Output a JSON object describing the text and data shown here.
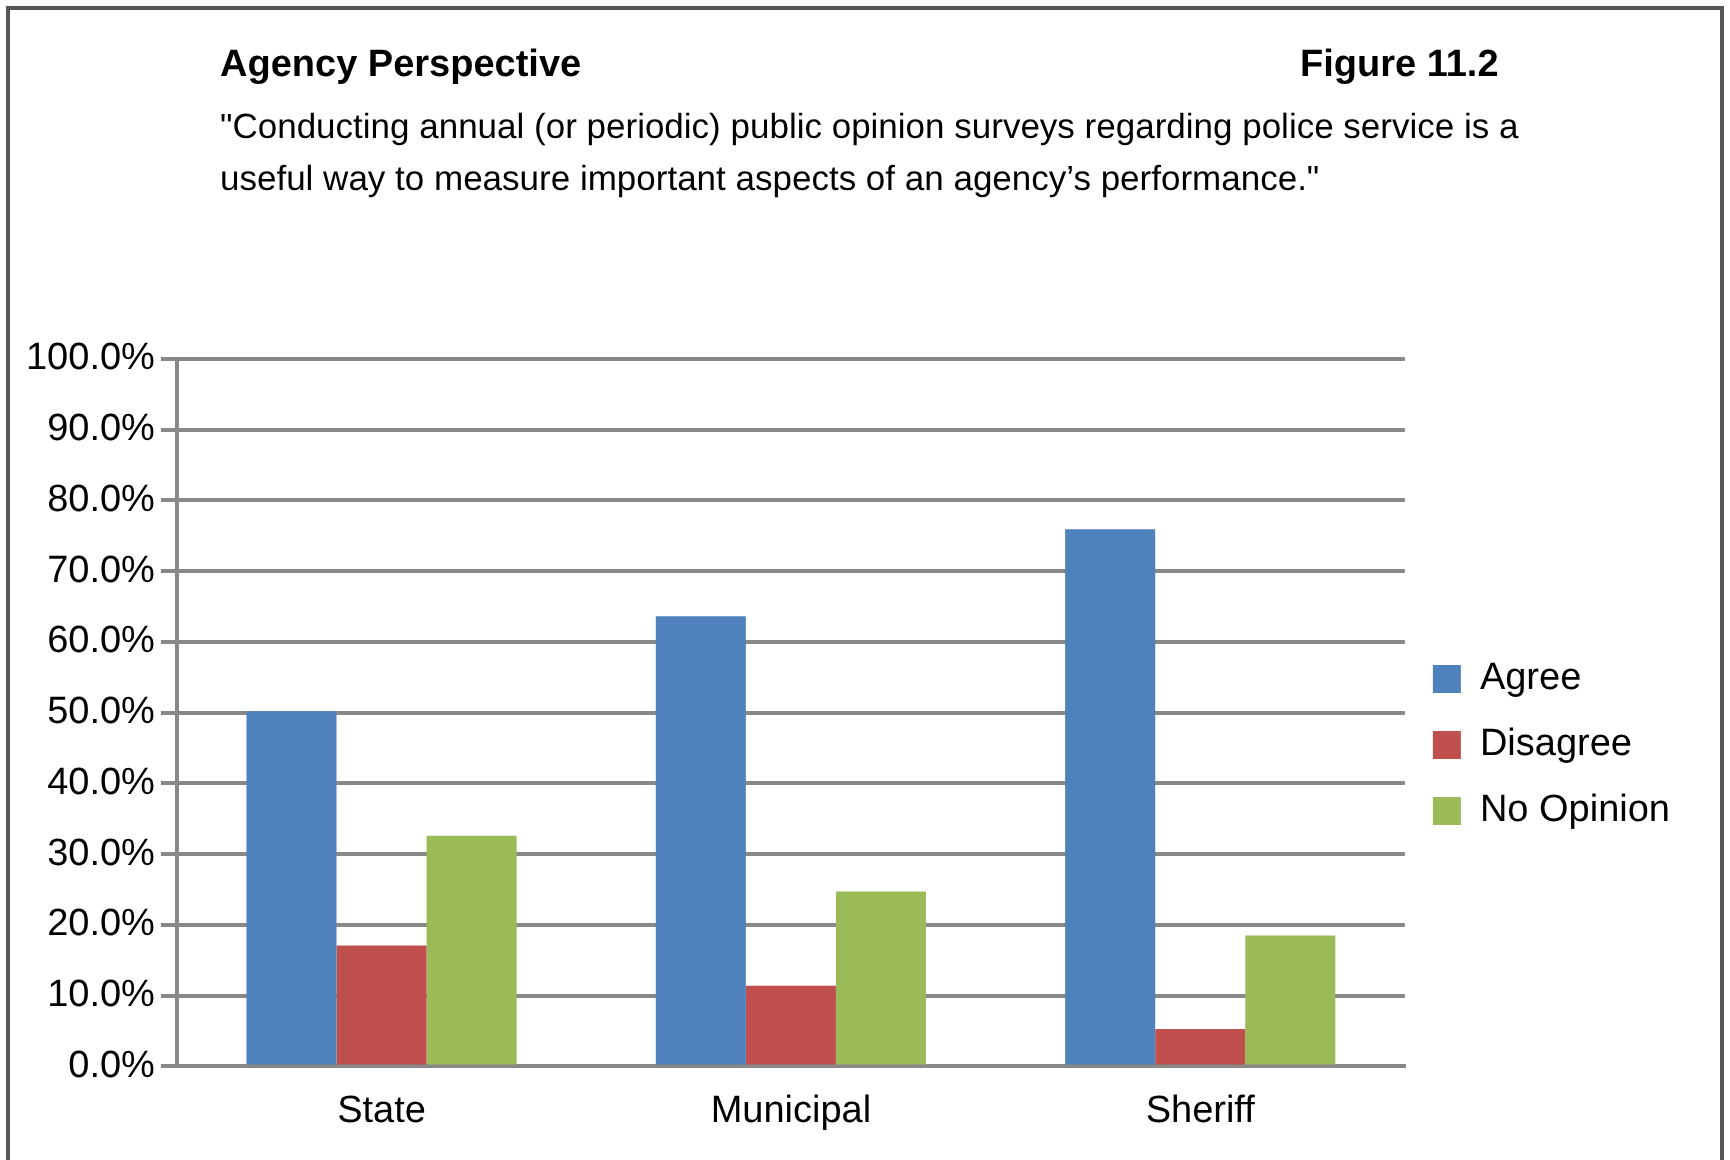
{
  "chart_data": {
    "type": "bar",
    "title": "Agency Perspective",
    "subtitle": "\"Conducting annual (or periodic) public opinion surveys regarding police service is a  useful way to measure important aspects of an agency’s performance.\"",
    "annotations": [
      "Figure 11.2"
    ],
    "categories": [
      "State",
      "Municipal",
      "Sheriff"
    ],
    "series": [
      {
        "name": "Agree",
        "color": "#4f81bd",
        "values": [
          50.2,
          63.6,
          75.9
        ]
      },
      {
        "name": "Disagree",
        "color": "#c0504d",
        "values": [
          17.1,
          11.4,
          5.3
        ]
      },
      {
        "name": "No Opinion",
        "color": "#9bbb59",
        "values": [
          32.6,
          24.7,
          18.5
        ]
      }
    ],
    "ylim": [
      0,
      100
    ],
    "yticks": [
      {
        "value": 0,
        "label": "0.0%"
      },
      {
        "value": 10,
        "label": "10.0%"
      },
      {
        "value": 20,
        "label": "20.0%"
      },
      {
        "value": 30,
        "label": "30.0%"
      },
      {
        "value": 40,
        "label": "40.0%"
      },
      {
        "value": 50,
        "label": "50.0%"
      },
      {
        "value": 60,
        "label": "60.0%"
      },
      {
        "value": 70,
        "label": "70.0%"
      },
      {
        "value": 80,
        "label": "80.0%"
      },
      {
        "value": 90,
        "label": "90.0%"
      },
      {
        "value": 100,
        "label": "100.0%"
      }
    ],
    "grid": "y",
    "legend": "right"
  }
}
